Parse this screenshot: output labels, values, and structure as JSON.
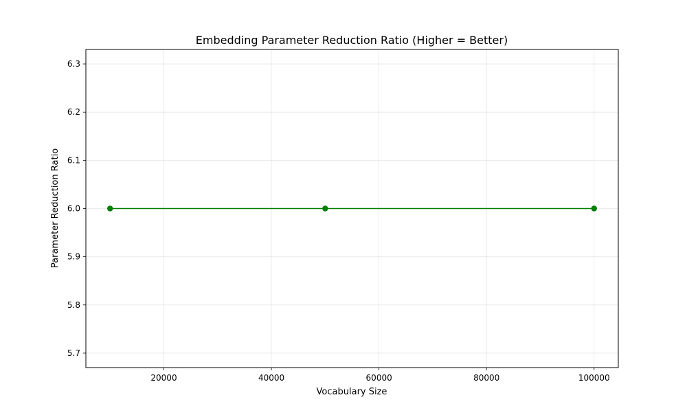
{
  "chart_data": {
    "type": "line",
    "title": "Embedding Parameter Reduction Ratio (Higher = Better)",
    "xlabel": "Vocabulary Size",
    "ylabel": "Parameter Reduction Ratio",
    "xlim": [
      5500,
      104500
    ],
    "ylim": [
      5.67,
      6.33
    ],
    "x_ticks": [
      20000,
      40000,
      60000,
      80000,
      100000
    ],
    "x_tick_labels": [
      "20000",
      "40000",
      "60000",
      "80000",
      "100000"
    ],
    "y_ticks": [
      5.7,
      5.8,
      5.9,
      6.0,
      6.1,
      6.2,
      6.3
    ],
    "y_tick_labels": [
      "5.7",
      "5.8",
      "5.9",
      "6.0",
      "6.1",
      "6.2",
      "6.3"
    ],
    "grid": true,
    "legend": "none",
    "series": [
      {
        "color": "#008000",
        "marker": "circle",
        "x": [
          10000,
          50000,
          100000
        ],
        "y": [
          6.0,
          6.0,
          6.0
        ]
      }
    ]
  }
}
